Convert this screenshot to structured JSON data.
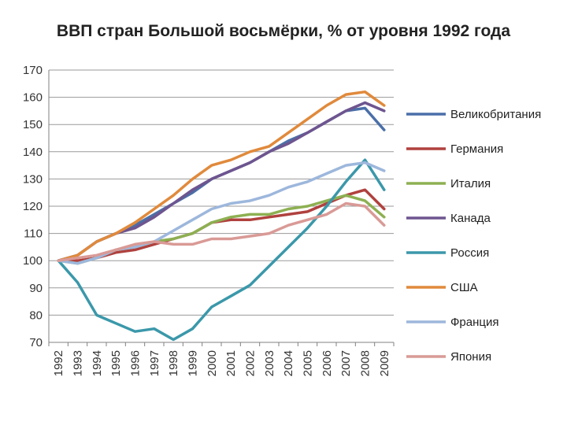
{
  "chart_data": {
    "type": "line",
    "title": "ВВП стран Большой восьмёрки, % от уровня 1992 года",
    "xlabel": "",
    "ylabel": "",
    "x": [
      "1992",
      "1993",
      "1994",
      "1995",
      "1996",
      "1997",
      "1998",
      "1999",
      "2000",
      "2001",
      "2002",
      "2003",
      "2004",
      "2005",
      "2006",
      "2007",
      "2008",
      "2009"
    ],
    "ylim": [
      70,
      170
    ],
    "yticks": [
      70,
      80,
      90,
      100,
      110,
      120,
      130,
      140,
      150,
      160,
      170
    ],
    "grid": true,
    "legend": "right",
    "series": [
      {
        "name": "Великобритания",
        "color": "#4a6fa8",
        "values": [
          100,
          102,
          107,
          110,
          113,
          117,
          121,
          125,
          130,
          133,
          136,
          140,
          144,
          147,
          151,
          155,
          156,
          148
        ]
      },
      {
        "name": "Германия",
        "color": "#b0413e",
        "values": [
          100,
          100,
          101,
          103,
          104,
          106,
          108,
          110,
          114,
          115,
          115,
          116,
          117,
          118,
          121,
          124,
          126,
          119
        ]
      },
      {
        "name": "Италия",
        "color": "#8db052",
        "values": [
          100,
          99,
          101,
          104,
          105,
          107,
          108,
          110,
          114,
          116,
          117,
          117,
          119,
          120,
          122,
          124,
          122,
          116
        ]
      },
      {
        "name": "Канада",
        "color": "#6e558f",
        "values": [
          100,
          102,
          107,
          110,
          112,
          116,
          121,
          126,
          130,
          133,
          136,
          140,
          143,
          147,
          151,
          155,
          158,
          155
        ]
      },
      {
        "name": "Россия",
        "color": "#3b98aa",
        "values": [
          100,
          92,
          80,
          77,
          74,
          75,
          71,
          75,
          83,
          87,
          91,
          98,
          105,
          112,
          120,
          129,
          137,
          126
        ]
      },
      {
        "name": "США",
        "color": "#e08a3c",
        "values": [
          100,
          102,
          107,
          110,
          114,
          119,
          124,
          130,
          135,
          137,
          140,
          142,
          147,
          152,
          157,
          161,
          162,
          157
        ]
      },
      {
        "name": "Франция",
        "color": "#9db7dc",
        "values": [
          100,
          99,
          101,
          104,
          105,
          107,
          111,
          115,
          119,
          121,
          122,
          124,
          127,
          129,
          132,
          135,
          136,
          133
        ]
      },
      {
        "name": "Япония",
        "color": "#d99a96",
        "values": [
          100,
          101,
          102,
          104,
          106,
          107,
          106,
          106,
          108,
          108,
          109,
          110,
          113,
          115,
          117,
          121,
          120,
          113
        ]
      }
    ]
  }
}
